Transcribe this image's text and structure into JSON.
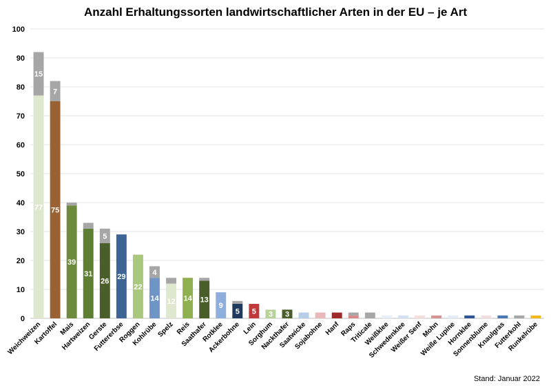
{
  "chart_data": {
    "type": "bar",
    "stacked": true,
    "title": "Anzahl Erhaltungssorten landwirtschaftlicher Arten in der EU – je Art",
    "xlabel": "",
    "ylabel": "",
    "ylim": [
      0,
      100
    ],
    "yticks": [
      0,
      10,
      20,
      30,
      40,
      50,
      60,
      70,
      80,
      90,
      100
    ],
    "grid": true,
    "legend": "none",
    "footnote": "Stand: Januar 2022",
    "bars": [
      {
        "category": "Weichweizen",
        "segments": [
          {
            "value": 77,
            "color": "#dde8cf",
            "label": "77"
          },
          {
            "value": 15,
            "color": "#a6a6a6",
            "label": "15"
          }
        ]
      },
      {
        "category": "Kartoffel",
        "segments": [
          {
            "value": 75,
            "color": "#9a6232",
            "label": "75"
          },
          {
            "value": 7,
            "color": "#a6a6a6",
            "label": "7"
          }
        ]
      },
      {
        "category": "Mais",
        "segments": [
          {
            "value": 39,
            "color": "#6e8b3d",
            "label": "39"
          },
          {
            "value": 1,
            "color": "#a6a6a6",
            "label": ""
          }
        ]
      },
      {
        "category": "Hartweizen",
        "segments": [
          {
            "value": 31,
            "color": "#5e7e33",
            "label": "31"
          },
          {
            "value": 2,
            "color": "#a6a6a6",
            "label": ""
          }
        ]
      },
      {
        "category": "Gerste",
        "segments": [
          {
            "value": 26,
            "color": "#4a5e2a",
            "label": "26"
          },
          {
            "value": 5,
            "color": "#a6a6a6",
            "label": "5"
          }
        ]
      },
      {
        "category": "Futtererbse",
        "segments": [
          {
            "value": 29,
            "color": "#3e6496",
            "label": "29"
          }
        ]
      },
      {
        "category": "Roggen",
        "segments": [
          {
            "value": 22,
            "color": "#a9c77d",
            "label": "22"
          }
        ]
      },
      {
        "category": "Kohlrübe",
        "segments": [
          {
            "value": 14,
            "color": "#6f94c6",
            "label": "14"
          },
          {
            "value": 4,
            "color": "#a6a6a6",
            "label": "4"
          }
        ]
      },
      {
        "category": "Spelz",
        "segments": [
          {
            "value": 12,
            "color": "#dde8cf",
            "label": "12"
          },
          {
            "value": 2,
            "color": "#a6a6a6",
            "label": ""
          }
        ]
      },
      {
        "category": "Reis",
        "segments": [
          {
            "value": 14,
            "color": "#8fb04f",
            "label": "14"
          }
        ]
      },
      {
        "category": "Saathafer",
        "segments": [
          {
            "value": 13,
            "color": "#4a5e2a",
            "label": "13"
          },
          {
            "value": 1,
            "color": "#a6a6a6",
            "label": ""
          }
        ]
      },
      {
        "category": "Rotklee",
        "segments": [
          {
            "value": 9,
            "color": "#8eaedb",
            "label": "9"
          }
        ]
      },
      {
        "category": "Ackerbohne",
        "segments": [
          {
            "value": 5,
            "color": "#1f3a5f",
            "label": "5"
          },
          {
            "value": 1,
            "color": "#a6a6a6",
            "label": ""
          }
        ]
      },
      {
        "category": "Lein",
        "segments": [
          {
            "value": 5,
            "color": "#c0393b",
            "label": "5"
          }
        ]
      },
      {
        "category": "Sorghum",
        "segments": [
          {
            "value": 3,
            "color": "#b7d196",
            "label": "3"
          }
        ]
      },
      {
        "category": "Nackthafer",
        "segments": [
          {
            "value": 3,
            "color": "#4a5e2a",
            "label": "3"
          }
        ]
      },
      {
        "category": "Saatwicke",
        "segments": [
          {
            "value": 2,
            "color": "#b8cde6",
            "label": ""
          }
        ]
      },
      {
        "category": "Sojabohne",
        "segments": [
          {
            "value": 2,
            "color": "#e8b9b9",
            "label": ""
          }
        ]
      },
      {
        "category": "Hanf",
        "segments": [
          {
            "value": 2,
            "color": "#9e2a2b",
            "label": ""
          }
        ]
      },
      {
        "category": "Raps",
        "segments": [
          {
            "value": 1,
            "color": "#d9898a",
            "label": ""
          },
          {
            "value": 1,
            "color": "#a6a6a6",
            "label": ""
          }
        ]
      },
      {
        "category": "Triticale",
        "segments": [
          {
            "value": 2,
            "color": "#a6a6a6",
            "label": ""
          }
        ]
      },
      {
        "category": "Weißklee",
        "segments": [
          {
            "value": 1,
            "color": "#e8eef7",
            "label": ""
          }
        ]
      },
      {
        "category": "Schwedenklee",
        "segments": [
          {
            "value": 1,
            "color": "#d4e1f1",
            "label": ""
          }
        ]
      },
      {
        "category": "Weißer Senf",
        "segments": [
          {
            "value": 1,
            "color": "#f5dede",
            "label": ""
          }
        ]
      },
      {
        "category": "Mohn",
        "segments": [
          {
            "value": 1,
            "color": "#d49494",
            "label": ""
          }
        ]
      },
      {
        "category": "Weiße Lupine",
        "segments": [
          {
            "value": 1,
            "color": "#e3ebf6",
            "label": ""
          }
        ]
      },
      {
        "category": "Hornklee",
        "segments": [
          {
            "value": 1,
            "color": "#2f5597",
            "label": ""
          }
        ]
      },
      {
        "category": "Sonnenblume",
        "segments": [
          {
            "value": 1,
            "color": "#f2e0e0",
            "label": ""
          }
        ]
      },
      {
        "category": "Knaulgras",
        "segments": [
          {
            "value": 1,
            "color": "#4a78b5",
            "label": ""
          }
        ]
      },
      {
        "category": "Futterkohl",
        "segments": [
          {
            "value": 1,
            "color": "#a6a6a6",
            "label": ""
          }
        ]
      },
      {
        "category": "Runkelrübe",
        "segments": [
          {
            "value": 1,
            "color": "#f2b81c",
            "label": ""
          }
        ]
      }
    ]
  }
}
